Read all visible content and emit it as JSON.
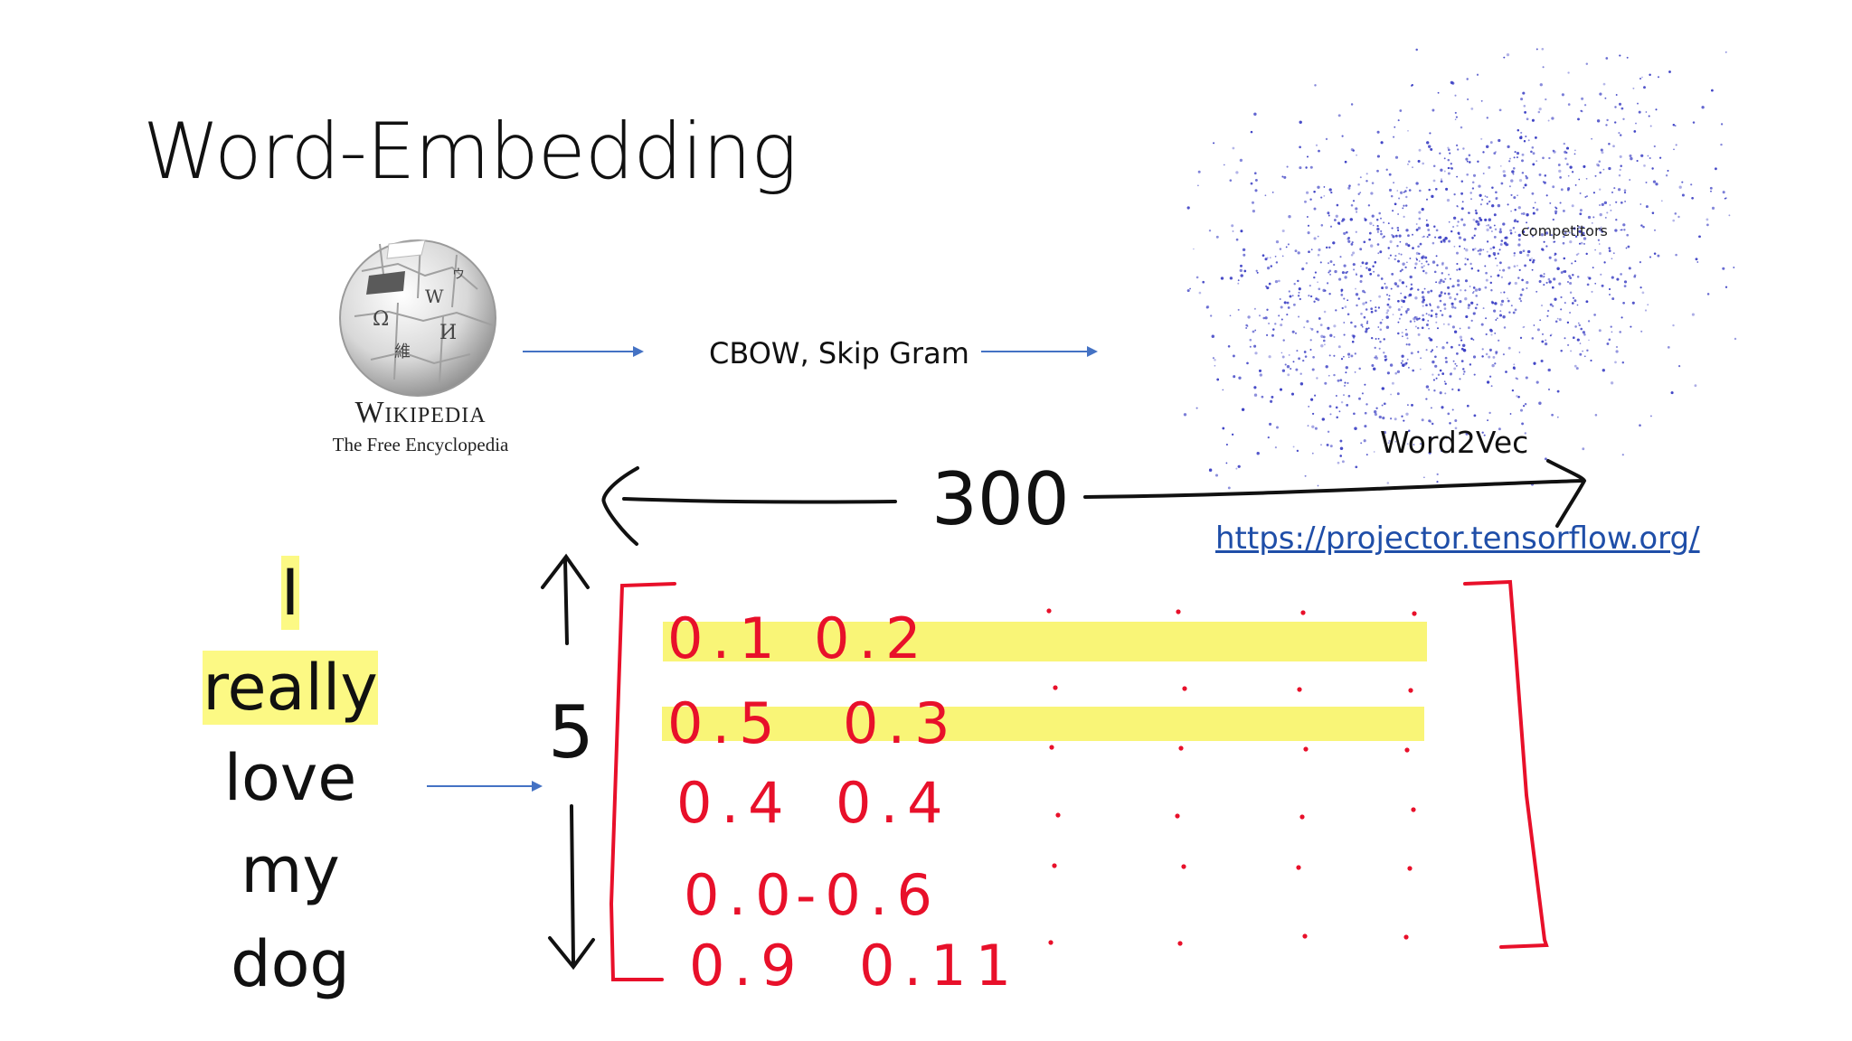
{
  "slide": {
    "title": "Word-Embedding",
    "wikipedia": {
      "wordmark": "Wikipedia",
      "tagline": "The Free Encyclopedia"
    },
    "method_label": "CBOW, Skip Gram",
    "word2vec_label": "Word2Vec",
    "scatter_point_label": "competitors",
    "link": "https://projector.tensorflow.org/",
    "sentence_words": [
      "I",
      "really",
      "love",
      "my",
      "dog"
    ],
    "highlighted_words": [
      "I",
      "really"
    ],
    "annotations": {
      "dimension_width": "300",
      "dimension_height": "5"
    },
    "matrix_rows": [
      [
        "0.1",
        "0.2"
      ],
      [
        "0.5",
        "0.3"
      ],
      [
        "0.4",
        "0.4"
      ],
      [
        "0.0",
        "-0.6"
      ],
      [
        "0.9",
        "0.11"
      ]
    ],
    "colors": {
      "ink": "#111111",
      "annotation_red": "#e8102a",
      "highlight_yellow": "#f7f24a",
      "arrow_blue": "#4472c4",
      "scatter_blue": "#3b3fc4",
      "link_blue": "#1f4ea8"
    }
  }
}
